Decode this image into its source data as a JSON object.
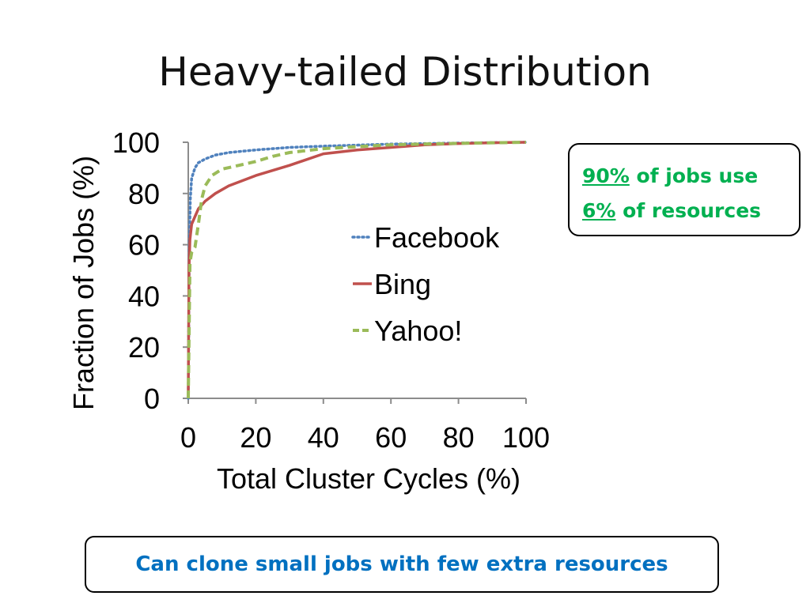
{
  "slide": {
    "title": "Heavy-tailed Distribution"
  },
  "callout": {
    "line1_value": "90%",
    "line1_text": " of jobs use",
    "line2_value": "6%",
    "line2_text": " of resources",
    "color": "#00b050"
  },
  "bottom_note": {
    "text": "Can clone small jobs with few extra resources",
    "color": "#0070c0"
  },
  "chart_data": {
    "type": "line",
    "title": "",
    "xlabel": "Total Cluster Cycles (%)",
    "ylabel": "Fraction of Jobs (%)",
    "xlim": [
      0,
      100
    ],
    "ylim": [
      0,
      100
    ],
    "xticks": [
      0,
      20,
      40,
      60,
      80,
      100
    ],
    "yticks": [
      0,
      20,
      40,
      60,
      80,
      100
    ],
    "grid": false,
    "legend_position": "center-right",
    "series": [
      {
        "name": "Facebook",
        "color": "#4f81bd",
        "style": "dotted",
        "x": [
          0,
          0.3,
          0.6,
          1,
          2,
          3,
          5,
          8,
          12,
          20,
          30,
          40,
          60,
          80,
          100
        ],
        "y": [
          0,
          60,
          78,
          86,
          90,
          92,
          93.5,
          95,
          96,
          97,
          98,
          98.5,
          99.3,
          99.7,
          100
        ]
      },
      {
        "name": "Bing",
        "color": "#c0504d",
        "style": "solid",
        "x": [
          0,
          0.2,
          0.5,
          1,
          2,
          3,
          5,
          8,
          12,
          20,
          30,
          40,
          50,
          60,
          70,
          80,
          90,
          100
        ],
        "y": [
          0,
          50,
          62,
          68,
          71,
          74,
          77,
          80,
          83,
          87,
          91,
          95.5,
          97,
          98,
          99,
          99.5,
          99.8,
          100
        ]
      },
      {
        "name": "Yahoo!",
        "color": "#9bbb59",
        "style": "dashed",
        "x": [
          0,
          0.5,
          1,
          2,
          3,
          4,
          5,
          7,
          10,
          15,
          20,
          25,
          30,
          40,
          50,
          60,
          80,
          100
        ],
        "y": [
          0,
          53,
          57,
          59,
          68,
          78,
          83,
          87,
          89.5,
          91,
          92.5,
          94.5,
          96,
          97.5,
          98.3,
          99,
          99.6,
          100
        ]
      }
    ]
  }
}
